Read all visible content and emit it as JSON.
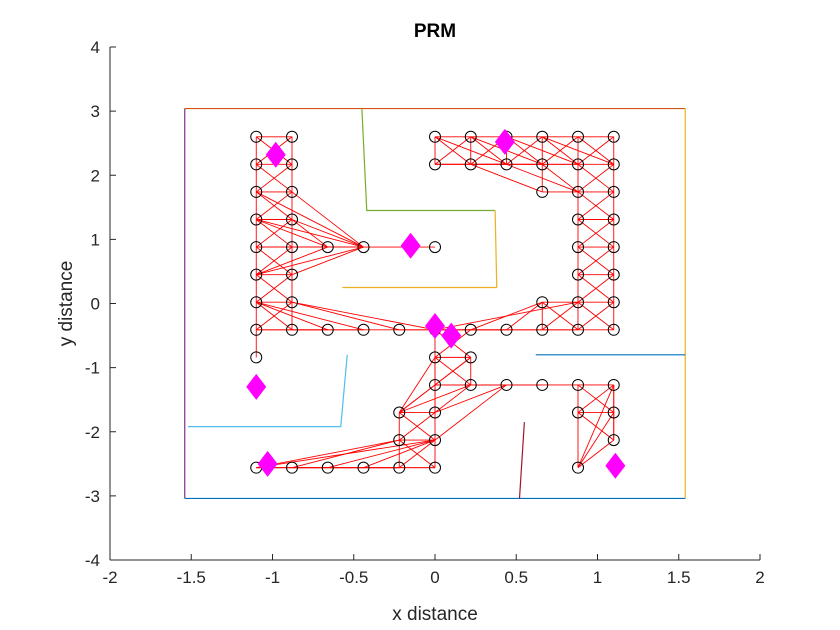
{
  "chart_data": {
    "type": "scatter",
    "title": "PRM",
    "xlabel": "x distance",
    "ylabel": "y distance",
    "xlim": [
      -2,
      2
    ],
    "ylim": [
      -4,
      4
    ],
    "xticks": [
      -2,
      -1.5,
      -1,
      -0.5,
      0,
      0.5,
      1,
      1.5,
      2
    ],
    "yticks": [
      -4,
      -3,
      -2,
      -1,
      0,
      1,
      2,
      3,
      4
    ],
    "xtick_labels": [
      "-2",
      "-1.5",
      "-1",
      "-0.5",
      "0",
      "0.5",
      "1",
      "1.5",
      "2"
    ],
    "ytick_labels": [
      "-4",
      "-3",
      "-2",
      "-1",
      "0",
      "1",
      "2",
      "3",
      "4"
    ],
    "grid": false,
    "colors": {
      "edges": "#ff0000",
      "nodes": "#000000",
      "markers": "#ff00ff",
      "axis": "#262626"
    },
    "walls": [
      {
        "color": "#d95319",
        "points": [
          [
            -1.54,
            3.04
          ],
          [
            1.54,
            3.04
          ]
        ]
      },
      {
        "color": "#edb120",
        "points": [
          [
            1.54,
            3.04
          ],
          [
            1.54,
            -3.04
          ]
        ]
      },
      {
        "color": "#0072bd",
        "points": [
          [
            -1.54,
            -3.04
          ],
          [
            1.54,
            -3.04
          ]
        ]
      },
      {
        "color": "#7e2f8e",
        "points": [
          [
            -1.54,
            -3.04
          ],
          [
            -1.54,
            3.04
          ]
        ]
      },
      {
        "color": "#77ac30",
        "points": [
          [
            -0.45,
            3.04
          ],
          [
            -0.42,
            1.45
          ],
          [
            0.37,
            1.45
          ]
        ]
      },
      {
        "color": "#edb120",
        "points": [
          [
            0.37,
            1.45
          ],
          [
            0.38,
            0.25
          ],
          [
            -0.57,
            0.25
          ]
        ]
      },
      {
        "color": "#4dbeee",
        "points": [
          [
            -0.54,
            -0.8
          ],
          [
            -0.58,
            -1.92
          ],
          [
            -1.52,
            -1.92
          ]
        ]
      },
      {
        "color": "#a2142f",
        "points": [
          [
            0.55,
            -1.85
          ],
          [
            0.52,
            -3.04
          ]
        ]
      },
      {
        "color": "#0072bd",
        "points": [
          [
            0.62,
            -0.8
          ],
          [
            1.54,
            -0.8
          ]
        ]
      }
    ],
    "nodes": [
      [
        -1.1,
        2.6
      ],
      [
        -0.88,
        2.6
      ],
      [
        -1.1,
        2.17
      ],
      [
        -0.88,
        2.17
      ],
      [
        -1.1,
        1.74
      ],
      [
        -0.88,
        1.74
      ],
      [
        -1.1,
        1.31
      ],
      [
        -0.88,
        1.31
      ],
      [
        -1.1,
        0.88
      ],
      [
        -0.88,
        0.88
      ],
      [
        -0.66,
        0.88
      ],
      [
        -0.44,
        0.88
      ],
      [
        0.0,
        0.88
      ],
      [
        -1.1,
        0.45
      ],
      [
        -0.88,
        0.45
      ],
      [
        -1.1,
        0.02
      ],
      [
        -0.88,
        0.02
      ],
      [
        -1.1,
        -0.41
      ],
      [
        -0.88,
        -0.41
      ],
      [
        -0.66,
        -0.41
      ],
      [
        -0.44,
        -0.41
      ],
      [
        -0.22,
        -0.41
      ],
      [
        0.0,
        -0.41
      ],
      [
        -1.1,
        -0.84
      ],
      [
        0.0,
        2.6
      ],
      [
        0.22,
        2.6
      ],
      [
        0.44,
        2.6
      ],
      [
        0.66,
        2.6
      ],
      [
        0.88,
        2.6
      ],
      [
        1.1,
        2.6
      ],
      [
        0.0,
        2.17
      ],
      [
        0.22,
        2.17
      ],
      [
        0.44,
        2.17
      ],
      [
        0.66,
        2.17
      ],
      [
        0.88,
        2.17
      ],
      [
        1.1,
        2.17
      ],
      [
        0.66,
        1.74
      ],
      [
        0.88,
        1.74
      ],
      [
        1.1,
        1.74
      ],
      [
        0.88,
        1.31
      ],
      [
        1.1,
        1.31
      ],
      [
        0.88,
        0.88
      ],
      [
        1.1,
        0.88
      ],
      [
        0.88,
        0.45
      ],
      [
        1.1,
        0.45
      ],
      [
        0.66,
        0.02
      ],
      [
        0.88,
        0.02
      ],
      [
        1.1,
        0.02
      ],
      [
        0.22,
        -0.41
      ],
      [
        0.44,
        -0.41
      ],
      [
        0.66,
        -0.41
      ],
      [
        0.88,
        -0.41
      ],
      [
        1.1,
        -0.41
      ],
      [
        0.0,
        -0.84
      ],
      [
        0.22,
        -0.84
      ],
      [
        0.0,
        -1.27
      ],
      [
        0.22,
        -1.27
      ],
      [
        0.44,
        -1.27
      ],
      [
        0.66,
        -1.27
      ],
      [
        0.88,
        -1.27
      ],
      [
        1.1,
        -1.27
      ],
      [
        -0.22,
        -1.7
      ],
      [
        0.0,
        -1.7
      ],
      [
        0.88,
        -1.7
      ],
      [
        1.1,
        -1.7
      ],
      [
        -0.22,
        -2.13
      ],
      [
        0.0,
        -2.13
      ],
      [
        1.1,
        -2.13
      ],
      [
        -1.1,
        -2.56
      ],
      [
        -0.88,
        -2.56
      ],
      [
        -0.66,
        -2.56
      ],
      [
        -0.44,
        -2.56
      ],
      [
        -0.22,
        -2.56
      ],
      [
        0.0,
        -2.56
      ],
      [
        0.88,
        -2.56
      ]
    ],
    "edges": [
      [
        0,
        1
      ],
      [
        0,
        2
      ],
      [
        1,
        3
      ],
      [
        0,
        3
      ],
      [
        1,
        2
      ],
      [
        2,
        3
      ],
      [
        2,
        4
      ],
      [
        3,
        5
      ],
      [
        2,
        5
      ],
      [
        3,
        4
      ],
      [
        4,
        5
      ],
      [
        4,
        6
      ],
      [
        5,
        7
      ],
      [
        4,
        7
      ],
      [
        5,
        6
      ],
      [
        6,
        7
      ],
      [
        6,
        8
      ],
      [
        7,
        9
      ],
      [
        6,
        9
      ],
      [
        7,
        8
      ],
      [
        8,
        9
      ],
      [
        8,
        13
      ],
      [
        9,
        14
      ],
      [
        8,
        14
      ],
      [
        9,
        13
      ],
      [
        13,
        14
      ],
      [
        13,
        15
      ],
      [
        14,
        16
      ],
      [
        13,
        16
      ],
      [
        14,
        15
      ],
      [
        15,
        16
      ],
      [
        15,
        17
      ],
      [
        16,
        18
      ],
      [
        15,
        18
      ],
      [
        16,
        17
      ],
      [
        17,
        18
      ],
      [
        17,
        23
      ],
      [
        8,
        10
      ],
      [
        9,
        10
      ],
      [
        10,
        11
      ],
      [
        11,
        12
      ],
      [
        8,
        11
      ],
      [
        9,
        11
      ],
      [
        6,
        10
      ],
      [
        6,
        11
      ],
      [
        7,
        11
      ],
      [
        4,
        11
      ],
      [
        5,
        11
      ],
      [
        13,
        11
      ],
      [
        14,
        11
      ],
      [
        13,
        10
      ],
      [
        7,
        10
      ],
      [
        17,
        19
      ],
      [
        18,
        19
      ],
      [
        19,
        20
      ],
      [
        20,
        21
      ],
      [
        21,
        22
      ],
      [
        15,
        20
      ],
      [
        16,
        21
      ],
      [
        16,
        22
      ],
      [
        18,
        20
      ],
      [
        15,
        19
      ],
      [
        24,
        25
      ],
      [
        25,
        26
      ],
      [
        26,
        27
      ],
      [
        27,
        28
      ],
      [
        28,
        29
      ],
      [
        24,
        30
      ],
      [
        25,
        31
      ],
      [
        26,
        32
      ],
      [
        27,
        33
      ],
      [
        28,
        34
      ],
      [
        29,
        35
      ],
      [
        30,
        31
      ],
      [
        31,
        32
      ],
      [
        32,
        33
      ],
      [
        33,
        34
      ],
      [
        34,
        35
      ],
      [
        24,
        31
      ],
      [
        25,
        30
      ],
      [
        25,
        32
      ],
      [
        26,
        31
      ],
      [
        26,
        33
      ],
      [
        27,
        32
      ],
      [
        27,
        34
      ],
      [
        28,
        33
      ],
      [
        28,
        35
      ],
      [
        29,
        34
      ],
      [
        24,
        32
      ],
      [
        25,
        33
      ],
      [
        26,
        34
      ],
      [
        27,
        35
      ],
      [
        30,
        32
      ],
      [
        31,
        34
      ],
      [
        30,
        33
      ],
      [
        31,
        36
      ],
      [
        32,
        37
      ],
      [
        33,
        36
      ],
      [
        33,
        37
      ],
      [
        34,
        37
      ],
      [
        35,
        38
      ],
      [
        34,
        38
      ],
      [
        35,
        37
      ],
      [
        36,
        37
      ],
      [
        37,
        38
      ],
      [
        37,
        39
      ],
      [
        38,
        40
      ],
      [
        37,
        40
      ],
      [
        38,
        39
      ],
      [
        39,
        40
      ],
      [
        39,
        41
      ],
      [
        40,
        42
      ],
      [
        39,
        42
      ],
      [
        40,
        41
      ],
      [
        41,
        42
      ],
      [
        41,
        43
      ],
      [
        42,
        44
      ],
      [
        41,
        44
      ],
      [
        42,
        43
      ],
      [
        43,
        44
      ],
      [
        43,
        46
      ],
      [
        44,
        47
      ],
      [
        43,
        47
      ],
      [
        44,
        46
      ],
      [
        45,
        46
      ],
      [
        46,
        47
      ],
      [
        45,
        50
      ],
      [
        46,
        51
      ],
      [
        47,
        52
      ],
      [
        45,
        51
      ],
      [
        46,
        50
      ],
      [
        46,
        52
      ],
      [
        47,
        51
      ],
      [
        50,
        51
      ],
      [
        51,
        52
      ],
      [
        48,
        49
      ],
      [
        49,
        50
      ],
      [
        22,
        48
      ],
      [
        22,
        49
      ],
      [
        48,
        45
      ],
      [
        49,
        45
      ],
      [
        22,
        46
      ],
      [
        48,
        51
      ],
      [
        21,
        48
      ],
      [
        22,
        53
      ],
      [
        53,
        54
      ],
      [
        22,
        54
      ],
      [
        48,
        53
      ],
      [
        53,
        55
      ],
      [
        54,
        56
      ],
      [
        53,
        56
      ],
      [
        54,
        55
      ],
      [
        55,
        56
      ],
      [
        56,
        57
      ],
      [
        57,
        58
      ],
      [
        58,
        59
      ],
      [
        59,
        60
      ],
      [
        55,
        57
      ],
      [
        56,
        58
      ],
      [
        59,
        63
      ],
      [
        60,
        64
      ],
      [
        59,
        64
      ],
      [
        60,
        63
      ],
      [
        63,
        64
      ],
      [
        63,
        67
      ],
      [
        64,
        67
      ],
      [
        60,
        67
      ],
      [
        63,
        74
      ],
      [
        64,
        74
      ],
      [
        67,
        74
      ],
      [
        60,
        74
      ],
      [
        55,
        62
      ],
      [
        55,
        61
      ],
      [
        53,
        61
      ],
      [
        53,
        62
      ],
      [
        61,
        62
      ],
      [
        61,
        65
      ],
      [
        62,
        66
      ],
      [
        61,
        66
      ],
      [
        62,
        65
      ],
      [
        65,
        66
      ],
      [
        65,
        72
      ],
      [
        66,
        73
      ],
      [
        65,
        73
      ],
      [
        66,
        72
      ],
      [
        72,
        73
      ],
      [
        68,
        69
      ],
      [
        69,
        70
      ],
      [
        70,
        71
      ],
      [
        71,
        72
      ],
      [
        68,
        72
      ],
      [
        69,
        72
      ],
      [
        68,
        73
      ],
      [
        68,
        65
      ],
      [
        69,
        65
      ],
      [
        68,
        66
      ],
      [
        70,
        66
      ],
      [
        71,
        66
      ],
      [
        54,
        61
      ],
      [
        56,
        61
      ],
      [
        57,
        62
      ],
      [
        56,
        62
      ],
      [
        57,
        66
      ]
    ],
    "milestones": [
      [
        -0.98,
        2.32
      ],
      [
        0.43,
        2.52
      ],
      [
        -0.15,
        0.9
      ],
      [
        0.0,
        -0.35
      ],
      [
        0.1,
        -0.5
      ],
      [
        -1.1,
        -1.3
      ],
      [
        -1.03,
        -2.5
      ],
      [
        1.11,
        -2.53
      ]
    ]
  }
}
